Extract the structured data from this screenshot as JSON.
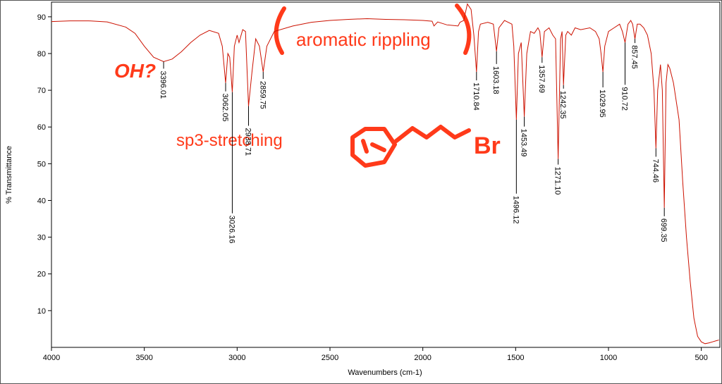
{
  "chart_data": {
    "type": "line",
    "x_label": "Wavenumbers (cm-1)",
    "y_label": "% Transmittance",
    "xlim": [
      4000,
      400
    ],
    "ylim": [
      0,
      94
    ],
    "xticks": [
      4000,
      3500,
      3000,
      2500,
      2000,
      1500,
      1000,
      500
    ],
    "yticks": [
      10,
      20,
      30,
      40,
      50,
      60,
      70,
      80,
      90
    ],
    "color": "#cc1100",
    "x": [
      4000,
      3900,
      3800,
      3700,
      3600,
      3550,
      3500,
      3450,
      3396.01,
      3350,
      3300,
      3250,
      3200,
      3150,
      3100,
      3080,
      3062.05,
      3050,
      3040,
      3026.16,
      3015,
      3000,
      2990,
      2970,
      2955,
      2938.71,
      2920,
      2900,
      2880,
      2859.75,
      2840,
      2800,
      2700,
      2600,
      2500,
      2400,
      2300,
      2200,
      2100,
      2000,
      1950,
      1940,
      1920,
      1870,
      1810,
      1800,
      1780,
      1760,
      1740,
      1725,
      1710.84,
      1700,
      1690,
      1650,
      1620,
      1603.18,
      1590,
      1560,
      1520,
      1510,
      1496.12,
      1485,
      1470,
      1453.49,
      1440,
      1420,
      1400,
      1380,
      1370,
      1357.69,
      1345,
      1320,
      1300,
      1285,
      1271.1,
      1258,
      1250,
      1242.35,
      1230,
      1220,
      1200,
      1180,
      1150,
      1100,
      1070,
      1050,
      1040,
      1029.95,
      1020,
      1000,
      970,
      940,
      925,
      910.72,
      895,
      880,
      870,
      857.45,
      845,
      830,
      810,
      790,
      770,
      755,
      744.46,
      735,
      720,
      710,
      699.35,
      690,
      680,
      670,
      650,
      620,
      600,
      580,
      560,
      540,
      520,
      500,
      480,
      460,
      440,
      420,
      405
    ],
    "values": [
      88.7,
      88.9,
      88.9,
      88.6,
      87.2,
      85.5,
      82,
      79,
      77.8,
      78.5,
      80.5,
      83,
      85,
      86.3,
      85.5,
      82,
      72,
      80,
      79,
      69.5,
      82,
      85,
      83,
      86.5,
      86,
      65.7,
      75,
      84,
      82,
      75,
      82,
      86,
      87.5,
      88.5,
      89,
      89.3,
      89.5,
      89.3,
      89.2,
      89,
      88.8,
      87.5,
      88.6,
      87.8,
      87.5,
      88.5,
      89,
      93.5,
      92,
      85,
      75,
      86,
      88,
      88.5,
      88,
      80.6,
      87,
      89,
      88,
      82,
      62,
      80,
      83,
      62.8,
      80,
      86,
      85.5,
      87,
      86,
      79,
      86,
      87,
      85,
      84,
      51.3,
      84,
      86,
      71.4,
      85,
      86,
      85,
      87,
      86.5,
      87,
      86,
      84,
      80,
      75,
      82,
      86,
      87,
      88,
      86,
      83,
      88,
      89,
      88,
      84,
      88,
      88,
      87,
      85,
      80,
      70,
      54.2,
      70,
      77,
      70,
      38,
      72,
      77,
      76,
      72,
      62,
      45,
      30,
      18,
      8,
      3,
      1.5,
      1,
      1.2,
      1.5,
      1.8,
      2
    ],
    "peak_labels": [
      3396.01,
      3062.05,
      3026.16,
      2938.71,
      2859.75,
      1710.84,
      1603.18,
      1496.12,
      1453.49,
      1357.69,
      {
        "value": 1271.1,
        "label": "1271.10"
      },
      1242.35,
      1029.95,
      910.72,
      857.45,
      744.46,
      699.35
    ],
    "annotations": [
      "OH?",
      "aromatic rippling",
      "sp3-stretching",
      "Br"
    ]
  }
}
